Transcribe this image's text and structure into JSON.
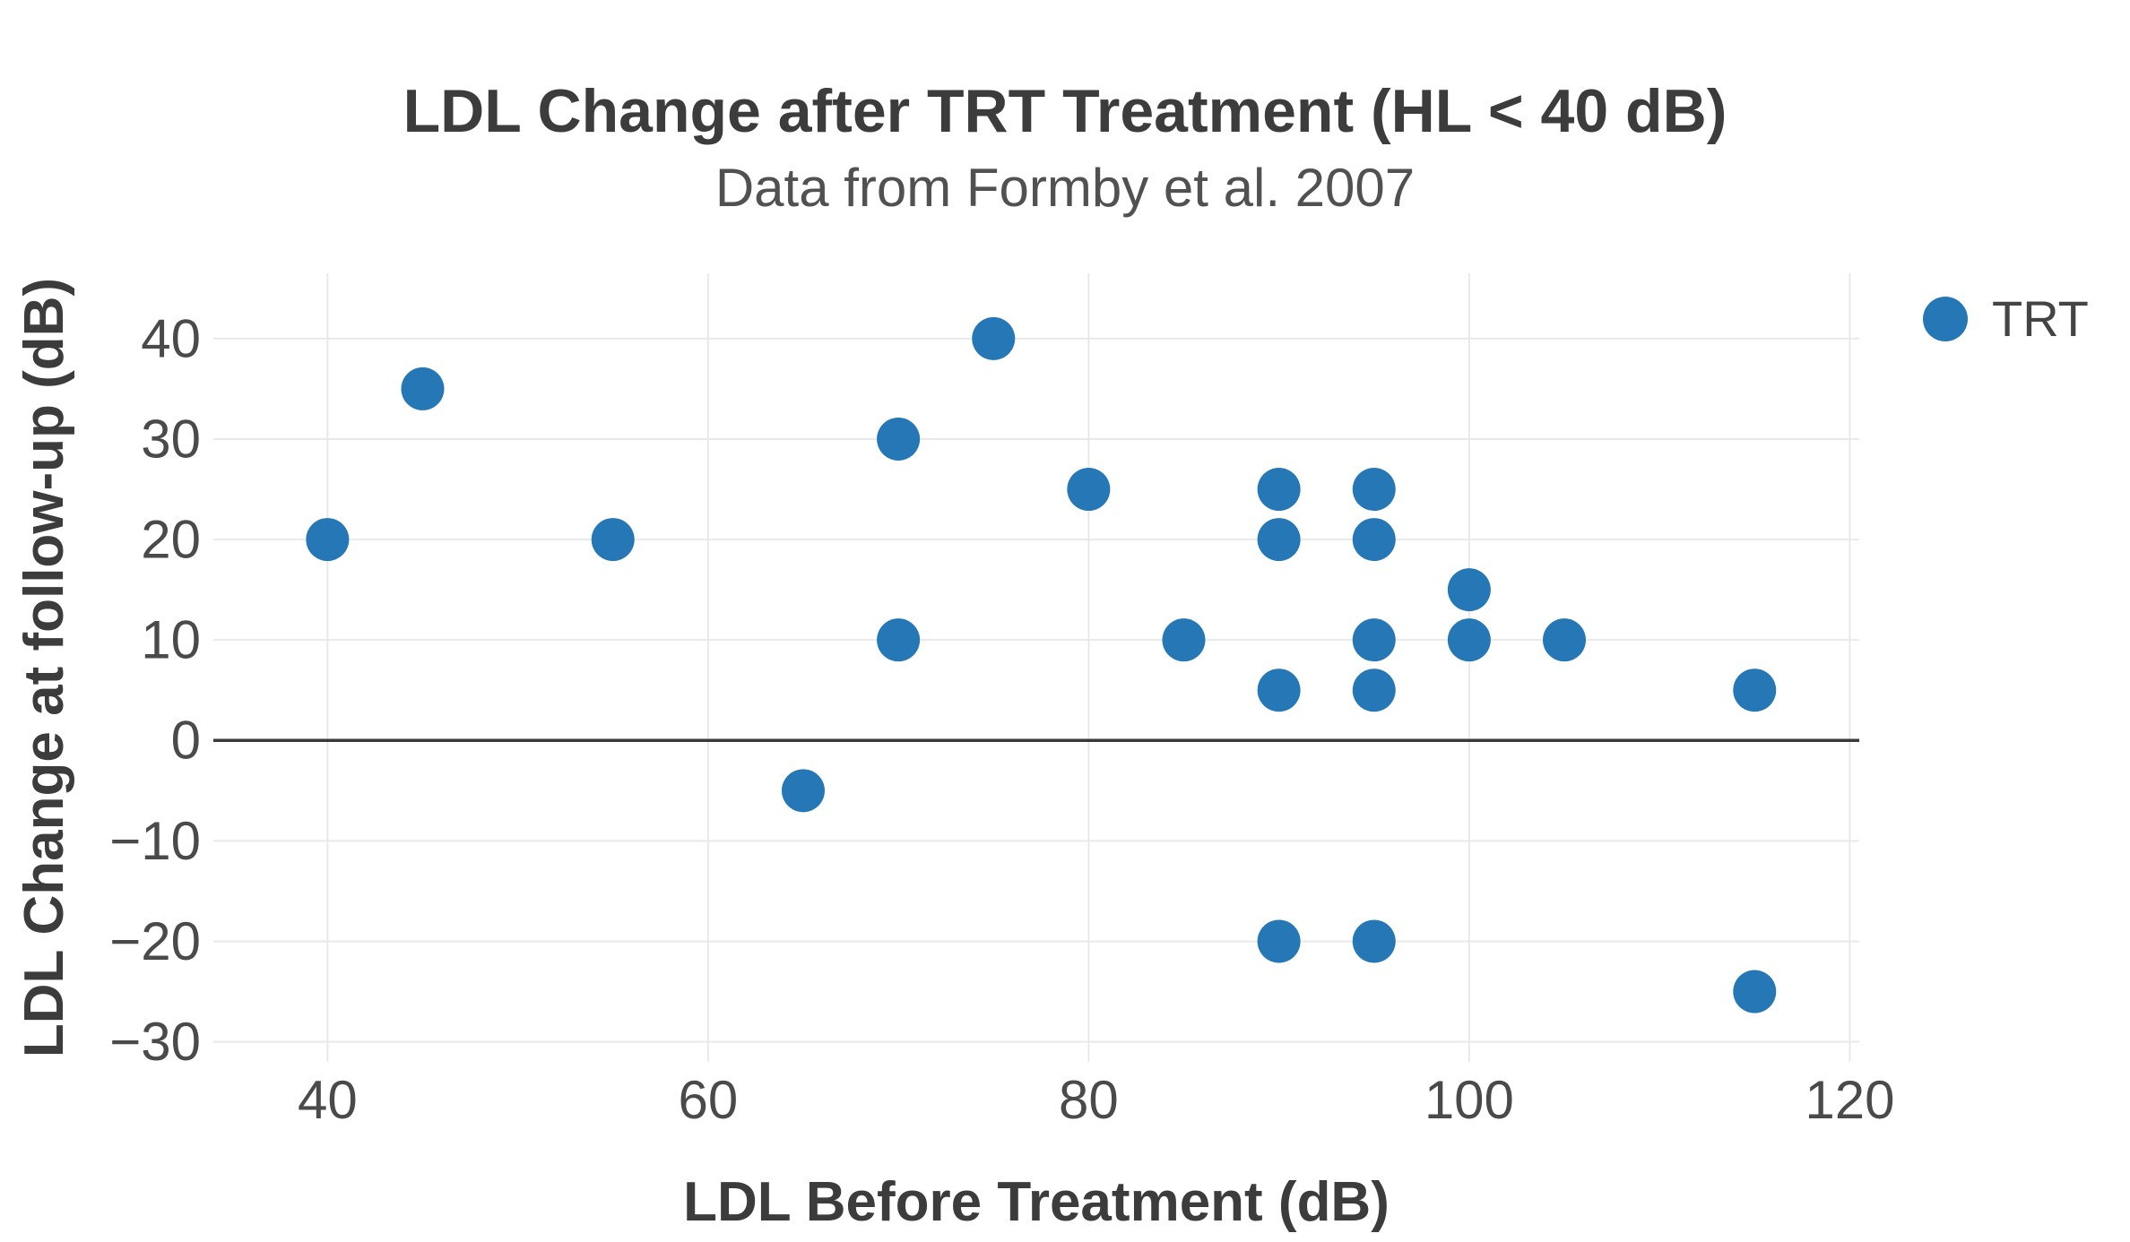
{
  "figure": {
    "title": "LDL Change after TRT Treatment (HL < 40 dB)",
    "subtitle": "Data from Formby et al. 2007"
  },
  "colors": {
    "point": "#2577b6",
    "grid": "#e9e9e9",
    "zero_line": "#3a3a3a",
    "title_text": "#3c3c3c",
    "tick_text": "#4a4a4a",
    "background": "#ffffff"
  },
  "legend": {
    "items": [
      {
        "label": "TRT",
        "marker": "circle",
        "color": "#2577b6"
      }
    ]
  },
  "chart_data": {
    "type": "scatter",
    "title": "LDL Change after TRT Treatment (HL < 40 dB)",
    "subtitle": "Data from Formby et al. 2007",
    "xlabel": "LDL Before Treatment (dB)",
    "ylabel": "LDL Change at follow-up (dB)",
    "xlim": [
      34,
      120.5
    ],
    "ylim": [
      -32,
      46.5
    ],
    "x_ticks": [
      40,
      60,
      80,
      100,
      120
    ],
    "y_ticks": [
      40,
      30,
      20,
      10,
      0,
      -10,
      -20,
      -30
    ],
    "grid": true,
    "zero_line": true,
    "legend_position": "top-right-outside",
    "series": [
      {
        "name": "TRT",
        "color": "#2577b6",
        "marker": "circle",
        "points": [
          [
            40,
            20
          ],
          [
            45,
            35
          ],
          [
            55,
            20
          ],
          [
            65,
            -5
          ],
          [
            70,
            30
          ],
          [
            70,
            10
          ],
          [
            75,
            40
          ],
          [
            80,
            25
          ],
          [
            85,
            10
          ],
          [
            90,
            25
          ],
          [
            90,
            20
          ],
          [
            90,
            5
          ],
          [
            90,
            -20
          ],
          [
            95,
            25
          ],
          [
            95,
            20
          ],
          [
            95,
            10
          ],
          [
            95,
            5
          ],
          [
            95,
            -20
          ],
          [
            100,
            15
          ],
          [
            100,
            10
          ],
          [
            105,
            10
          ],
          [
            115,
            5
          ],
          [
            115,
            -25
          ]
        ]
      }
    ]
  }
}
